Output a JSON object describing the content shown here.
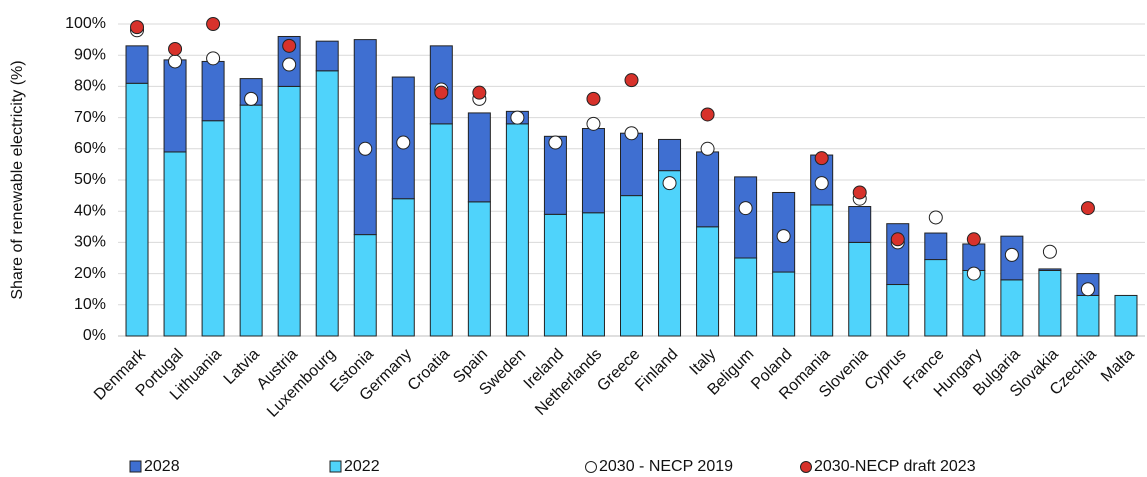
{
  "chart_data": {
    "type": "stacked-bar-with-markers",
    "y_label": "Share of renewable electricity (%)",
    "categories": [
      "Denmark",
      "Portugal",
      "Lithuania",
      "Latvia",
      "Austria",
      "Luxembourg",
      "Estonia",
      "Germany",
      "Croatia",
      "Spain",
      "Sweden",
      "Ireland",
      "Netherlands",
      "Greece",
      "Finland",
      "Italy",
      "Beligum",
      "Poland",
      "Romania",
      "Slovenia",
      "Cyprus",
      "France",
      "Hungary",
      "Bulgaria",
      "Slovakia",
      "Czechia",
      "Malta"
    ],
    "series": [
      {
        "name": "2028",
        "kind": "bar",
        "stack_on": 1,
        "color": "#3f6fd1",
        "values": [
          12,
          29.5,
          19,
          8.5,
          16,
          9.5,
          62.5,
          39,
          25,
          28.5,
          4,
          25,
          27,
          20,
          10,
          24,
          26,
          25.5,
          16,
          11.5,
          19.5,
          8.5,
          8.5,
          14,
          0.5,
          7,
          0
        ]
      },
      {
        "name": "2022",
        "kind": "bar",
        "color": "#4fd3fb",
        "values": [
          81,
          59,
          69,
          74,
          80,
          85,
          32.5,
          44,
          68,
          43,
          68,
          39,
          39.5,
          45,
          53,
          35,
          25,
          20.5,
          42,
          30,
          16.5,
          24.5,
          21,
          18,
          21,
          13,
          13
        ]
      },
      {
        "name": "2030 - NECP 2019",
        "kind": "marker",
        "color": "#ffffff",
        "values": [
          98,
          88,
          89,
          76,
          87,
          null,
          60,
          62,
          79,
          76,
          70,
          62,
          68,
          65,
          49,
          60,
          41,
          32,
          49,
          44,
          30,
          38,
          20,
          26,
          27,
          15,
          null
        ]
      },
      {
        "name": "2030-NECP draft 2023",
        "kind": "marker",
        "color": "#d7322b",
        "values": [
          99,
          92,
          100,
          null,
          93,
          null,
          null,
          null,
          78,
          78,
          null,
          null,
          76,
          82,
          null,
          71,
          null,
          null,
          57,
          46,
          31,
          null,
          31,
          null,
          null,
          41,
          null
        ]
      }
    ],
    "ylim": [
      0,
      100
    ],
    "yticks": [
      {
        "value": 0,
        "label": "0%"
      },
      {
        "value": 10,
        "label": "10%"
      },
      {
        "value": 20,
        "label": "20%"
      },
      {
        "value": 30,
        "label": "30%"
      },
      {
        "value": 40,
        "label": "40%"
      },
      {
        "value": 50,
        "label": "50%"
      },
      {
        "value": 60,
        "label": "60%"
      },
      {
        "value": 70,
        "label": "70%"
      },
      {
        "value": 80,
        "label": "80%"
      },
      {
        "value": 90,
        "label": "90%"
      },
      {
        "value": 100,
        "label": "100%"
      }
    ],
    "grid": true
  }
}
